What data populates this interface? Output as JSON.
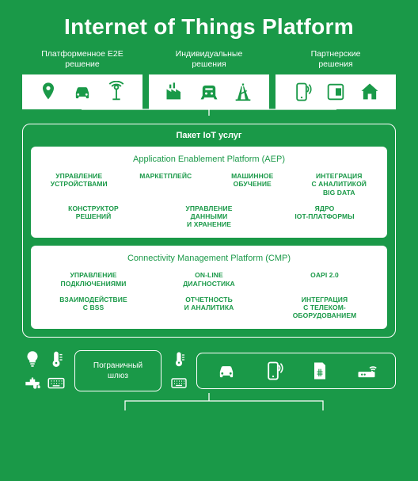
{
  "title": "Internet of Things Platform",
  "background_color": "#1a9948",
  "text_color": "#ffffff",
  "box_bg": "#ffffff",
  "box_text": "#1a9948",
  "top_columns": [
    {
      "label": "Платформенное E2E\nрешение",
      "icons": [
        "pin",
        "car",
        "antenna"
      ]
    },
    {
      "label": "Индивидуальные\nрешения",
      "icons": [
        "factory",
        "train",
        "oil"
      ]
    },
    {
      "label": "Партнерские\nрешения",
      "icons": [
        "phone",
        "card",
        "house"
      ]
    }
  ],
  "iot_package_title": "Пакет IoT услуг",
  "platforms": [
    {
      "title": "Application Enablement Platform (AEP)",
      "rows": [
        [
          "УПРАВЛЕНИЕ\nУСТРОЙСТВАМИ",
          "МАРКЕТПЛЕЙС",
          "МАШИННОЕ\nОБУЧЕНИЕ",
          "ИНТЕГРАЦИЯ\nС АНАЛИТИКОЙ\nBIG DATA"
        ],
        [
          "КОНСТРУКТОР\nРЕШЕНИЙ",
          "УПРАВЛЕНИЕ\nДАННЫМИ\nИ ХРАНЕНИЕ",
          "ЯДРО\nIOT-ПЛАТФОРМЫ"
        ]
      ]
    },
    {
      "title": "Connectivity Management Platform (CMP)",
      "rows": [
        [
          "УПРАВЛЕНИЕ\nПОДКЛЮЧЕНИЯМИ",
          "ON-LINE\nДИАГНОСТИКА",
          "OAPI 2.0"
        ],
        [
          "ВЗАИМОДЕЙСТВИЕ\nС BSS",
          "ОТЧЕТНОСТЬ\nИ АНАЛИТИКА",
          "ИНТЕГРАЦИЯ\nС ТЕЛЕКОМ-\nОБОРУДОВАНИЕМ"
        ]
      ]
    }
  ],
  "gateway_label": "Пограничный\nшлюз",
  "sensor_icons": [
    "bulb",
    "thermo",
    "tap",
    "keyboard"
  ],
  "device_icons": [
    "car",
    "phone",
    "sim",
    "router"
  ]
}
